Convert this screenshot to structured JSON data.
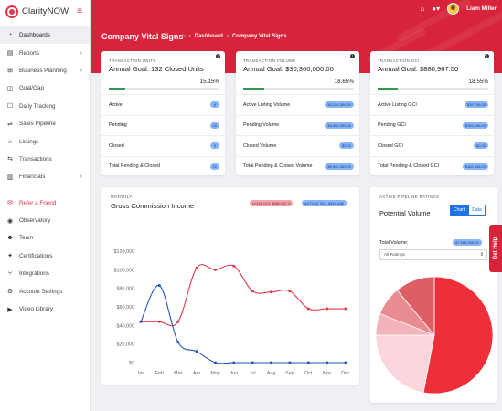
{
  "app": {
    "name": "ClarityNOW"
  },
  "sidebar": {
    "items": [
      {
        "label": "Dashboards",
        "icon": "dashboard-icon",
        "glyph": "◔",
        "active": true,
        "chevron": false
      },
      {
        "label": "Reports",
        "icon": "reports-icon",
        "glyph": "▤",
        "chevron": true
      },
      {
        "label": "Business Planning",
        "icon": "planning-icon",
        "glyph": "⊞",
        "chevron": true
      },
      {
        "label": "Goal/Gap",
        "icon": "goal-icon",
        "glyph": "◫",
        "chevron": false
      },
      {
        "label": "Daily Tracking",
        "icon": "tracking-icon",
        "glyph": "☐",
        "chevron": false
      },
      {
        "label": "Sales Pipeline",
        "icon": "pipeline-icon",
        "glyph": "⇌",
        "chevron": false
      },
      {
        "label": "Listings",
        "icon": "home-icon",
        "glyph": "⌂",
        "chevron": false
      },
      {
        "label": "Transactions",
        "icon": "transactions-icon",
        "glyph": "⇆",
        "chevron": false
      },
      {
        "label": "Financials",
        "icon": "financials-icon",
        "glyph": "▥",
        "chevron": true
      },
      {
        "label": "Refer a Friend",
        "icon": "gift-icon",
        "glyph": "✉",
        "red": true,
        "gap": true
      },
      {
        "label": "Observatory",
        "icon": "eye-icon",
        "glyph": "◉"
      },
      {
        "label": "Team",
        "icon": "team-icon",
        "glyph": "☻"
      },
      {
        "label": "Certifications",
        "icon": "certificate-icon",
        "glyph": "✦"
      },
      {
        "label": "Integrations",
        "icon": "integrations-icon",
        "glyph": "⑂"
      },
      {
        "label": "Account Settings",
        "icon": "gear-icon",
        "glyph": "⚙"
      },
      {
        "label": "Video Library",
        "icon": "video-icon",
        "glyph": "▶"
      }
    ]
  },
  "header": {
    "title": "Company Vital Signs",
    "breadcrumb": [
      "Dashboard",
      "Company Vital Signs"
    ],
    "user_name": "Liam Miller"
  },
  "kpis": [
    {
      "caption": "TRANSACTION UNITS",
      "goal": "Annual Goal: 132 Closed Units",
      "percent": "15.15%",
      "percent_value": 15.15,
      "rows": [
        {
          "label": "Active",
          "value": "8"
        },
        {
          "label": "Pending",
          "value": "20"
        },
        {
          "label": "Closed",
          "value": "0"
        },
        {
          "label": "Total Pending & Closed",
          "value": "20"
        }
      ]
    },
    {
      "caption": "TRANSACTION VOLUME",
      "goal": "Annual Goal: $30,360,000.00",
      "percent": "18.65%",
      "percent_value": 18.65,
      "rows": [
        {
          "label": "Active Listing Volume",
          "value": "$3,024,300.00"
        },
        {
          "label": "Pending Volume",
          "value": "$5,662,050.00"
        },
        {
          "label": "Closed Volume",
          "value": "$0.00"
        },
        {
          "label": "Total Pending & Closed Volume",
          "value": "$5,662,050.00"
        }
      ]
    },
    {
      "caption": "TRANSACTION GCI",
      "goal": "Annual Goal: $880,967.50",
      "percent": "18.55%",
      "percent_value": 18.55,
      "rows": [
        {
          "label": "Active Listing GCI",
          "value": "$39,738.00"
        },
        {
          "label": "Pending GCI",
          "value": "$163,438.00"
        },
        {
          "label": "Closed GCI",
          "value": "$0.00"
        },
        {
          "label": "Total Pending & Closed GCI",
          "value": "$163,438.00"
        }
      ]
    }
  ],
  "gci": {
    "caption": "MONTHLY",
    "title": "Gross Commission Income",
    "goal_badge": "GOAL GCI: $880,967.5",
    "actual_badge": "ACTUAL GCI: $163,438"
  },
  "pipeline": {
    "caption": "ACTIVE PIPELINE RATINGS",
    "title": "Potential Volume",
    "tab_chart": "Chart",
    "tab_data": "Data",
    "total_label": "Total Volume:",
    "total_value": "$7,988,300.00",
    "filter_value": "All Ratings"
  },
  "get_help": "Get Help",
  "colors": {
    "brand": "#d7243a",
    "accent_blue": "#1e73e8",
    "goal_line": "#e03a4a",
    "actual_line": "#2255b8"
  },
  "chart_data": [
    {
      "type": "line",
      "title": "Gross Commission Income",
      "categories": [
        "Jan",
        "Feb",
        "Mar",
        "Apr",
        "May",
        "Jun",
        "Jul",
        "Aug",
        "Sep",
        "Oct",
        "Nov",
        "Dec"
      ],
      "series": [
        {
          "name": "GOAL GCI",
          "color": "#e03a4a",
          "values": [
            44000,
            44000,
            44000,
            102000,
            100000,
            104000,
            77000,
            76000,
            77000,
            58000,
            58000,
            58000
          ]
        },
        {
          "name": "ACTUAL GCI",
          "color": "#2255b8",
          "values": [
            44000,
            83000,
            22000,
            12000,
            0,
            0,
            0,
            0,
            0,
            0,
            0,
            0
          ]
        }
      ],
      "ylim": [
        0,
        120000
      ],
      "yticks": [
        "$0",
        "$20,000",
        "$40,000",
        "$60,000",
        "$80,000",
        "$100,000",
        "$120,000"
      ],
      "grid": false
    },
    {
      "type": "pie",
      "title": "Potential Volume",
      "slices": [
        {
          "value": 53,
          "color": "#ee2f3a"
        },
        {
          "value": 22,
          "color": "#fcd6dc"
        },
        {
          "value": 6,
          "color": "#f4b3bb"
        },
        {
          "value": 8,
          "color": "#e88c92"
        },
        {
          "value": 11,
          "color": "#de5f63"
        }
      ]
    }
  ]
}
